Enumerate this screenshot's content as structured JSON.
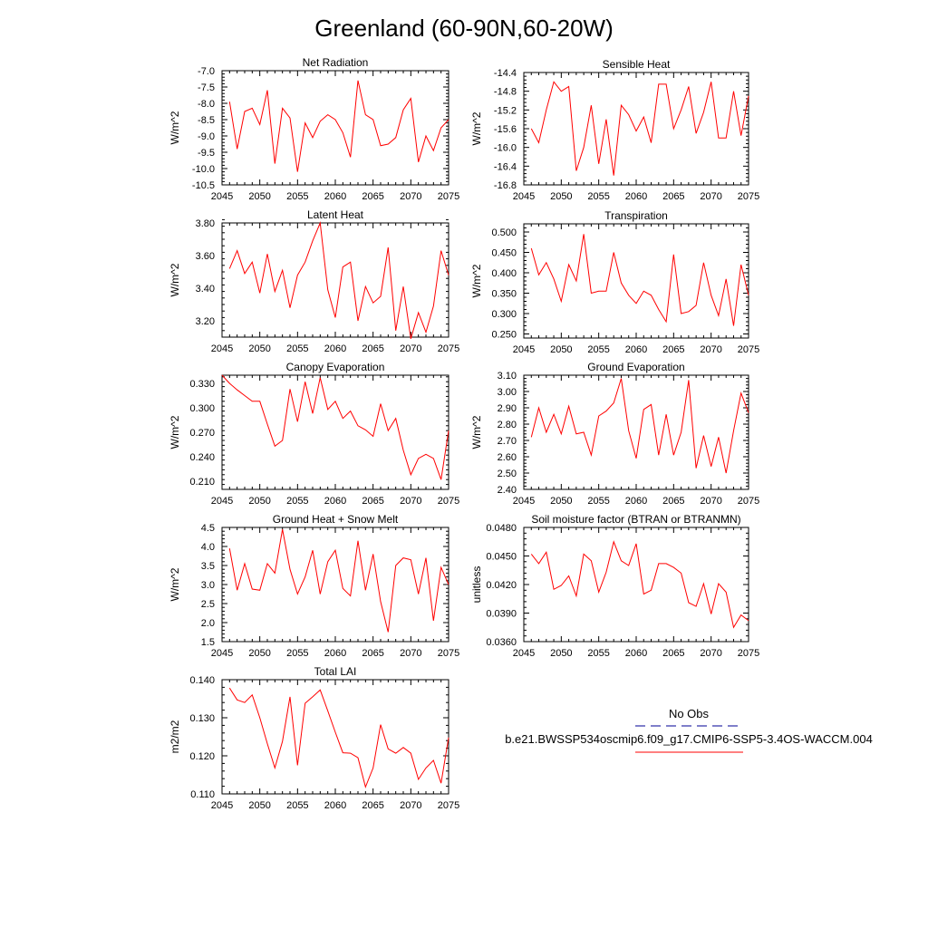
{
  "figure": {
    "title": "Greenland (60-90N,60-20W)"
  },
  "legend": {
    "obs_label": "No Obs",
    "model_label": "b.e21.BWSSP534oscmip6.f09_g17.CMIP6-SSP5-3.4OS-WACCM.004",
    "obs_color": "#3333aa",
    "model_color": "#ff0000"
  },
  "chart_data": [
    {
      "type": "line",
      "title": "Net Radiation",
      "xlabel": "",
      "ylabel": "W/m^2",
      "xlim": [
        2045,
        2075
      ],
      "ylim": [
        -10.5,
        -7.0
      ],
      "xticks": [
        2045,
        2050,
        2055,
        2060,
        2065,
        2070,
        2075
      ],
      "xtick_labels": [
        "2045",
        "2050",
        "2055",
        "2060",
        "2065",
        "2070",
        "2075"
      ],
      "yticks": [
        -10.5,
        -10.0,
        -9.5,
        -9.0,
        -8.5,
        -8.0,
        -7.5,
        -7.0
      ],
      "ytick_labels": [
        "-10.5",
        "-10.0",
        "-9.5",
        "-9.0",
        "-8.5",
        "-8.0",
        "-7.5",
        "-7.0"
      ],
      "series": [
        {
          "name": "b.e21.BWSSP534oscmip6.f09_g17.CMIP6-SSP5-3.4OS-WACCM.004",
          "color": "#ff0000",
          "x": [
            2046,
            2047,
            2048,
            2049,
            2050,
            2051,
            2052,
            2053,
            2054,
            2055,
            2056,
            2057,
            2058,
            2059,
            2060,
            2061,
            2062,
            2063,
            2064,
            2065,
            2066,
            2067,
            2068,
            2069,
            2070,
            2071,
            2072,
            2073,
            2074,
            2075
          ],
          "values": [
            -7.95,
            -9.4,
            -8.25,
            -8.15,
            -8.65,
            -7.6,
            -9.85,
            -8.15,
            -8.45,
            -10.1,
            -8.6,
            -9.05,
            -8.55,
            -8.35,
            -8.5,
            -8.9,
            -9.65,
            -7.3,
            -8.35,
            -8.5,
            -9.3,
            -9.25,
            -9.05,
            -8.2,
            -7.85,
            -9.8,
            -9.0,
            -9.45,
            -8.75,
            -8.5
          ]
        }
      ]
    },
    {
      "type": "line",
      "title": "Sensible Heat",
      "xlabel": "",
      "ylabel": "W/m^2",
      "xlim": [
        2045,
        2075
      ],
      "ylim": [
        -16.8,
        -14.4
      ],
      "xticks": [
        2045,
        2050,
        2055,
        2060,
        2065,
        2070,
        2075
      ],
      "xtick_labels": [
        "2045",
        "2050",
        "2055",
        "2060",
        "2065",
        "2070",
        "2075"
      ],
      "yticks": [
        -16.8,
        -16.4,
        -16.0,
        -15.6,
        -15.2,
        -14.8,
        -14.4
      ],
      "ytick_labels": [
        "-16.8",
        "-16.4",
        "-16.0",
        "-15.6",
        "-15.2",
        "-14.8",
        "-14.4"
      ],
      "series": [
        {
          "name": "b.e21.BWSSP534oscmip6.f09_g17.CMIP6-SSP5-3.4OS-WACCM.004",
          "color": "#ff0000",
          "x": [
            2046,
            2047,
            2048,
            2049,
            2050,
            2051,
            2052,
            2053,
            2054,
            2055,
            2056,
            2057,
            2058,
            2059,
            2060,
            2061,
            2062,
            2063,
            2064,
            2065,
            2066,
            2067,
            2068,
            2069,
            2070,
            2071,
            2072,
            2073,
            2074,
            2075
          ],
          "values": [
            -15.6,
            -15.9,
            -15.2,
            -14.6,
            -14.8,
            -14.7,
            -16.5,
            -16.0,
            -15.1,
            -16.35,
            -15.4,
            -16.6,
            -15.1,
            -15.3,
            -15.65,
            -15.35,
            -15.9,
            -14.65,
            -14.65,
            -15.6,
            -15.2,
            -14.7,
            -15.7,
            -15.25,
            -14.6,
            -15.8,
            -15.8,
            -14.8,
            -15.75,
            -14.9
          ]
        }
      ]
    },
    {
      "type": "line",
      "title": "Latent Heat",
      "xlabel": "",
      "ylabel": "W/m^2",
      "xlim": [
        2045,
        2075
      ],
      "ylim": [
        3.1,
        3.8
      ],
      "xticks": [
        2045,
        2050,
        2055,
        2060,
        2065,
        2070,
        2075
      ],
      "xtick_labels": [
        "2045",
        "2050",
        "2055",
        "2060",
        "2065",
        "2070",
        "2075"
      ],
      "yticks": [
        3.2,
        3.4,
        3.6,
        3.8
      ],
      "ytick_labels": [
        "3.20",
        "3.40",
        "3.60",
        "3.80"
      ],
      "series": [
        {
          "name": "b.e21.BWSSP534oscmip6.f09_g17.CMIP6-SSP5-3.4OS-WACCM.004",
          "color": "#ff0000",
          "x": [
            2046,
            2047,
            2048,
            2049,
            2050,
            2051,
            2052,
            2053,
            2054,
            2055,
            2056,
            2057,
            2058,
            2059,
            2060,
            2061,
            2062,
            2063,
            2064,
            2065,
            2066,
            2067,
            2068,
            2069,
            2070,
            2071,
            2072,
            2073,
            2074,
            2075
          ],
          "values": [
            3.52,
            3.63,
            3.49,
            3.56,
            3.37,
            3.61,
            3.38,
            3.51,
            3.28,
            3.48,
            3.56,
            3.69,
            3.8,
            3.39,
            3.22,
            3.53,
            3.56,
            3.2,
            3.41,
            3.31,
            3.35,
            3.65,
            3.14,
            3.41,
            3.09,
            3.25,
            3.13,
            3.29,
            3.63,
            3.48
          ]
        }
      ]
    },
    {
      "type": "line",
      "title": "Transpiration",
      "xlabel": "",
      "ylabel": "W/m^2",
      "xlim": [
        2045,
        2075
      ],
      "ylim": [
        0.24,
        0.52
      ],
      "xticks": [
        2045,
        2050,
        2055,
        2060,
        2065,
        2070,
        2075
      ],
      "xtick_labels": [
        "2045",
        "2050",
        "2055",
        "2060",
        "2065",
        "2070",
        "2075"
      ],
      "yticks": [
        0.25,
        0.3,
        0.35,
        0.4,
        0.45,
        0.5
      ],
      "ytick_labels": [
        "0.250",
        "0.300",
        "0.350",
        "0.400",
        "0.450",
        "0.500"
      ],
      "series": [
        {
          "name": "b.e21.BWSSP534oscmip6.f09_g17.CMIP6-SSP5-3.4OS-WACCM.004",
          "color": "#ff0000",
          "x": [
            2046,
            2047,
            2048,
            2049,
            2050,
            2051,
            2052,
            2053,
            2054,
            2055,
            2056,
            2057,
            2058,
            2059,
            2060,
            2061,
            2062,
            2063,
            2064,
            2065,
            2066,
            2067,
            2068,
            2069,
            2070,
            2071,
            2072,
            2073,
            2074,
            2075
          ],
          "values": [
            0.46,
            0.395,
            0.425,
            0.385,
            0.33,
            0.42,
            0.38,
            0.495,
            0.35,
            0.355,
            0.355,
            0.45,
            0.375,
            0.345,
            0.325,
            0.355,
            0.345,
            0.31,
            0.28,
            0.445,
            0.3,
            0.305,
            0.32,
            0.425,
            0.345,
            0.295,
            0.385,
            0.27,
            0.42,
            0.345
          ]
        }
      ]
    },
    {
      "type": "line",
      "title": "Canopy Evaporation",
      "xlabel": "",
      "ylabel": "W/m^2",
      "xlim": [
        2045,
        2075
      ],
      "ylim": [
        0.2,
        0.34
      ],
      "xticks": [
        2045,
        2050,
        2055,
        2060,
        2065,
        2070,
        2075
      ],
      "xtick_labels": [
        "2045",
        "2050",
        "2055",
        "2060",
        "2065",
        "2070",
        "2075"
      ],
      "yticks": [
        0.21,
        0.24,
        0.27,
        0.3,
        0.33
      ],
      "ytick_labels": [
        "0.210",
        "0.240",
        "0.270",
        "0.300",
        "0.330"
      ],
      "series": [
        {
          "name": "b.e21.BWSSP534oscmip6.f09_g17.CMIP6-SSP5-3.4OS-WACCM.004",
          "color": "#ff0000",
          "x": [
            2045,
            2046,
            2047,
            2048,
            2049,
            2050,
            2051,
            2052,
            2053,
            2054,
            2055,
            2056,
            2057,
            2058,
            2059,
            2060,
            2061,
            2062,
            2063,
            2064,
            2065,
            2066,
            2067,
            2068,
            2069,
            2070,
            2071,
            2072,
            2073,
            2074,
            2075
          ],
          "values": [
            0.34,
            0.33,
            0.322,
            0.315,
            0.308,
            0.308,
            0.28,
            0.253,
            0.26,
            0.323,
            0.283,
            0.332,
            0.293,
            0.337,
            0.298,
            0.308,
            0.287,
            0.296,
            0.278,
            0.273,
            0.265,
            0.305,
            0.272,
            0.287,
            0.248,
            0.218,
            0.238,
            0.243,
            0.238,
            0.212,
            0.272
          ]
        }
      ]
    },
    {
      "type": "line",
      "title": "Ground Evaporation",
      "xlabel": "",
      "ylabel": "W/m^2",
      "xlim": [
        2045,
        2075
      ],
      "ylim": [
        2.4,
        3.1
      ],
      "xticks": [
        2045,
        2050,
        2055,
        2060,
        2065,
        2070,
        2075
      ],
      "xtick_labels": [
        "2045",
        "2050",
        "2055",
        "2060",
        "2065",
        "2070",
        "2075"
      ],
      "yticks": [
        2.4,
        2.5,
        2.6,
        2.7,
        2.8,
        2.9,
        3.0,
        3.1
      ],
      "ytick_labels": [
        "2.40",
        "2.50",
        "2.60",
        "2.70",
        "2.80",
        "2.90",
        "3.00",
        "3.10"
      ],
      "series": [
        {
          "name": "b.e21.BWSSP534oscmip6.f09_g17.CMIP6-SSP5-3.4OS-WACCM.004",
          "color": "#ff0000",
          "x": [
            2046,
            2047,
            2048,
            2049,
            2050,
            2051,
            2052,
            2053,
            2054,
            2055,
            2056,
            2057,
            2058,
            2059,
            2060,
            2061,
            2062,
            2063,
            2064,
            2065,
            2066,
            2067,
            2068,
            2069,
            2070,
            2071,
            2072,
            2073,
            2074,
            2075
          ],
          "values": [
            2.72,
            2.9,
            2.75,
            2.86,
            2.74,
            2.91,
            2.74,
            2.75,
            2.61,
            2.85,
            2.88,
            2.93,
            3.08,
            2.76,
            2.59,
            2.89,
            2.92,
            2.61,
            2.86,
            2.61,
            2.75,
            3.07,
            2.53,
            2.73,
            2.54,
            2.72,
            2.5,
            2.76,
            2.99,
            2.87
          ]
        }
      ]
    },
    {
      "type": "line",
      "title": "Ground Heat + Snow Melt",
      "xlabel": "",
      "ylabel": "W/m^2",
      "xlim": [
        2045,
        2075
      ],
      "ylim": [
        1.5,
        4.5
      ],
      "xticks": [
        2045,
        2050,
        2055,
        2060,
        2065,
        2070,
        2075
      ],
      "xtick_labels": [
        "2045",
        "2050",
        "2055",
        "2060",
        "2065",
        "2070",
        "2075"
      ],
      "yticks": [
        1.5,
        2.0,
        2.5,
        3.0,
        3.5,
        4.0,
        4.5
      ],
      "ytick_labels": [
        "1.5",
        "2.0",
        "2.5",
        "3.0",
        "3.5",
        "4.0",
        "4.5"
      ],
      "series": [
        {
          "name": "b.e21.BWSSP534oscmip6.f09_g17.CMIP6-SSP5-3.4OS-WACCM.004",
          "color": "#ff0000",
          "x": [
            2046,
            2047,
            2048,
            2049,
            2050,
            2051,
            2052,
            2053,
            2054,
            2055,
            2056,
            2057,
            2058,
            2059,
            2060,
            2061,
            2062,
            2063,
            2064,
            2065,
            2066,
            2067,
            2068,
            2069,
            2070,
            2071,
            2072,
            2073,
            2074,
            2075
          ],
          "values": [
            3.95,
            2.85,
            3.55,
            2.88,
            2.85,
            3.55,
            3.3,
            4.45,
            3.4,
            2.75,
            3.2,
            3.9,
            2.75,
            3.6,
            3.9,
            2.9,
            2.7,
            4.15,
            2.85,
            3.8,
            2.55,
            1.75,
            3.5,
            3.7,
            3.65,
            2.75,
            3.7,
            2.05,
            3.45,
            3.0
          ]
        }
      ]
    },
    {
      "type": "line",
      "title": "Soil moisture factor (BTRAN or BTRANMN)",
      "xlabel": "",
      "ylabel": "unitless",
      "xlim": [
        2045,
        2075
      ],
      "ylim": [
        0.036,
        0.048
      ],
      "xticks": [
        2045,
        2050,
        2055,
        2060,
        2065,
        2070,
        2075
      ],
      "xtick_labels": [
        "2045",
        "2050",
        "2055",
        "2060",
        "2065",
        "2070",
        "2075"
      ],
      "yticks": [
        0.036,
        0.039,
        0.042,
        0.045,
        0.048
      ],
      "ytick_labels": [
        "0.0360",
        "0.0390",
        "0.0420",
        "0.0450",
        "0.0480"
      ],
      "series": [
        {
          "name": "b.e21.BWSSP534oscmip6.f09_g17.CMIP6-SSP5-3.4OS-WACCM.004",
          "color": "#ff0000",
          "x": [
            2046,
            2047,
            2048,
            2049,
            2050,
            2051,
            2052,
            2053,
            2054,
            2055,
            2056,
            2057,
            2058,
            2059,
            2060,
            2061,
            2062,
            2063,
            2064,
            2065,
            2066,
            2067,
            2068,
            2069,
            2070,
            2071,
            2072,
            2073,
            2074,
            2075
          ],
          "values": [
            0.0452,
            0.0442,
            0.0454,
            0.0415,
            0.0419,
            0.0429,
            0.0408,
            0.0452,
            0.0445,
            0.0412,
            0.0433,
            0.0465,
            0.0445,
            0.044,
            0.0463,
            0.041,
            0.0414,
            0.0442,
            0.0442,
            0.0438,
            0.0432,
            0.0401,
            0.0397,
            0.0421,
            0.0389,
            0.0421,
            0.0412,
            0.0375,
            0.0388,
            0.0382
          ]
        }
      ]
    },
    {
      "type": "line",
      "title": "Total LAI",
      "xlabel": "",
      "ylabel": "m2/m2",
      "xlim": [
        2045,
        2075
      ],
      "ylim": [
        0.11,
        0.14
      ],
      "xticks": [
        2045,
        2050,
        2055,
        2060,
        2065,
        2070,
        2075
      ],
      "xtick_labels": [
        "2045",
        "2050",
        "2055",
        "2060",
        "2065",
        "2070",
        "2075"
      ],
      "yticks": [
        0.11,
        0.12,
        0.13,
        0.14
      ],
      "ytick_labels": [
        "0.110",
        "0.120",
        "0.130",
        "0.140"
      ],
      "series": [
        {
          "name": "b.e21.BWSSP534oscmip6.f09_g17.CMIP6-SSP5-3.4OS-WACCM.004",
          "color": "#ff0000",
          "x": [
            2046,
            2047,
            2048,
            2049,
            2050,
            2051,
            2052,
            2053,
            2054,
            2055,
            2056,
            2057,
            2058,
            2059,
            2060,
            2061,
            2062,
            2063,
            2064,
            2065,
            2066,
            2067,
            2068,
            2069,
            2070,
            2071,
            2072,
            2073,
            2074,
            2075
          ],
          "values": [
            0.1378,
            0.1347,
            0.134,
            0.136,
            0.13,
            0.1232,
            0.1168,
            0.1238,
            0.1355,
            0.1175,
            0.1338,
            0.1355,
            0.1373,
            0.1318,
            0.1262,
            0.1208,
            0.1207,
            0.1195,
            0.1118,
            0.1168,
            0.1282,
            0.1218,
            0.1207,
            0.1222,
            0.1207,
            0.1138,
            0.1168,
            0.1188,
            0.1128,
            0.1248
          ]
        }
      ]
    }
  ]
}
